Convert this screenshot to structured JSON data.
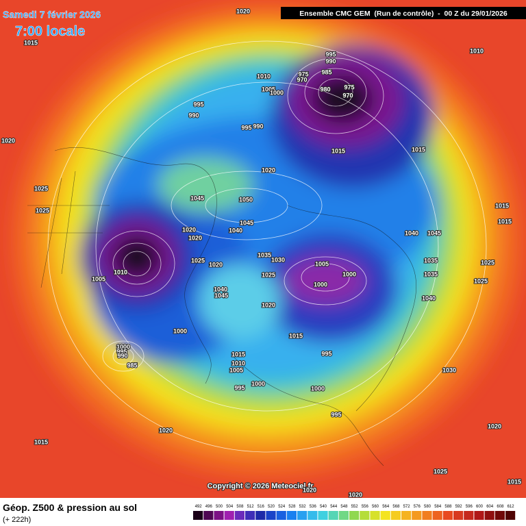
{
  "header": {
    "date": "Samedi 7 février 2026",
    "time": "7:00 locale",
    "model": "Ensemble CMC GEM  (Run de contrôle)  -  00 Z du 29/01/2026"
  },
  "footer": {
    "field": "Géop. Z500 & pression au sol",
    "lead": "(+ 222h)",
    "copyright": "Copyright © 2026 Meteociel.fr"
  },
  "scale": {
    "ticks": [
      492,
      496,
      500,
      504,
      508,
      512,
      516,
      520,
      524,
      528,
      532,
      536,
      540,
      544,
      548,
      552,
      556,
      560,
      564,
      568,
      572,
      576,
      580,
      584,
      588,
      592,
      596,
      600,
      604,
      608,
      612
    ]
  },
  "isobar_labels": [
    1020,
    1015,
    1010,
    995,
    990,
    975,
    970,
    985,
    1010,
    1005,
    1000,
    980,
    975,
    970,
    995,
    990,
    995,
    990,
    1020,
    1015,
    1015,
    1020,
    1025,
    1045,
    1050,
    1025,
    1015,
    1015,
    1045,
    1040,
    1020,
    1020,
    1040,
    1045,
    1035,
    1030,
    1025,
    1020,
    1005,
    1035,
    1025,
    1010,
    1005,
    1000,
    1025,
    1035,
    1000,
    1025,
    1040,
    1045,
    1040,
    1020,
    1000,
    1015,
    1000,
    995,
    990,
    995,
    1015,
    985,
    1010,
    1005,
    1030,
    1000,
    995,
    1000,
    995,
    1020,
    1020,
    1015,
    1025,
    1020,
    1020,
    1015
  ]
}
